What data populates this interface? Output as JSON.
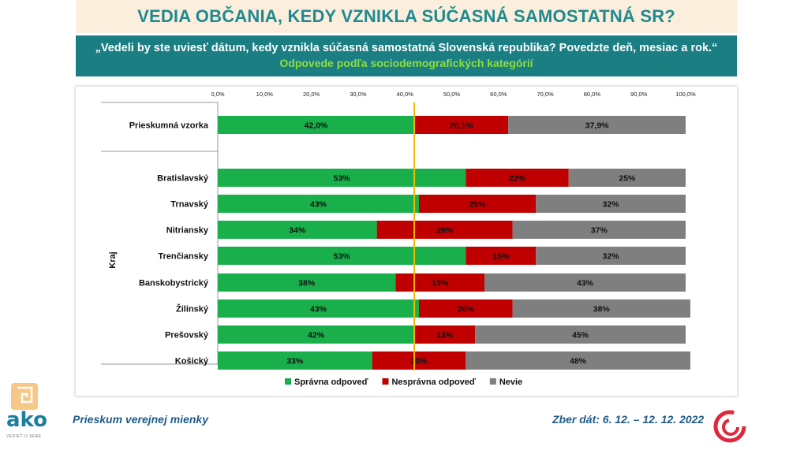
{
  "header": {
    "title": "VEDIA OBČANIA, KEDY VZNIKLA SÚČASNÁ SAMOSTATNÁ SR?",
    "question": "„Vedeli by ste uviesť dátum, kedy vznikla súčasná samostatná Slovenská republika? Povedzte deň, mesiac a rok.“",
    "subtitle": "Odpovede podľa sociodemografických kategórií"
  },
  "chart_data": {
    "type": "bar",
    "orientation": "horizontal",
    "stacked": true,
    "percent_axis": true,
    "xlim": [
      0,
      100
    ],
    "x_ticks": [
      "0,0%",
      "10,0%",
      "20,0%",
      "30,0%",
      "40,0%",
      "50,0%",
      "60,0%",
      "70,0%",
      "80,0%",
      "90,0%",
      "100,0%"
    ],
    "group_label": "Kraj",
    "reference_line": {
      "value": 42.0,
      "color": "#f0b800"
    },
    "categories": [
      "Prieskumná vzorka",
      "Bratislavský",
      "Trnavský",
      "Nitriansky",
      "Trenčiansky",
      "Banskobystrický",
      "Žilinský",
      "Prešovský",
      "Košický"
    ],
    "series": [
      {
        "name": "Správna odpoveď",
        "color": "#19b04b",
        "values": [
          42.0,
          53,
          43,
          34,
          53,
          38,
          43,
          42,
          33
        ],
        "labels": [
          "42,0%",
          "53%",
          "43%",
          "34%",
          "53%",
          "38%",
          "43%",
          "42%",
          "33%"
        ]
      },
      {
        "name": "Nesprávna odpoveď",
        "color": "#c00000",
        "values": [
          20.1,
          22,
          25,
          29,
          15,
          19,
          20,
          13,
          20
        ],
        "labels": [
          "20,1%",
          "22%",
          "25%",
          "29%",
          "15%",
          "19%",
          "20%",
          "13%",
          "20%"
        ]
      },
      {
        "name": "Nevie",
        "color": "#7f7f7f",
        "values": [
          37.9,
          25,
          32,
          37,
          32,
          43,
          38,
          45,
          48
        ],
        "labels": [
          "37,9%",
          "25%",
          "32%",
          "37%",
          "32%",
          "43%",
          "38%",
          "45%",
          "48%"
        ]
      }
    ],
    "legend_position": "bottom"
  },
  "footer": {
    "left": "Prieskum verejnej mienky",
    "right": "Zber dát: 6. 12. – 12. 12. 2022"
  },
  "logo": {
    "text": "ako",
    "tagline": "VEDIEŤ O SEBE",
    "color": "#1d7fa0"
  }
}
